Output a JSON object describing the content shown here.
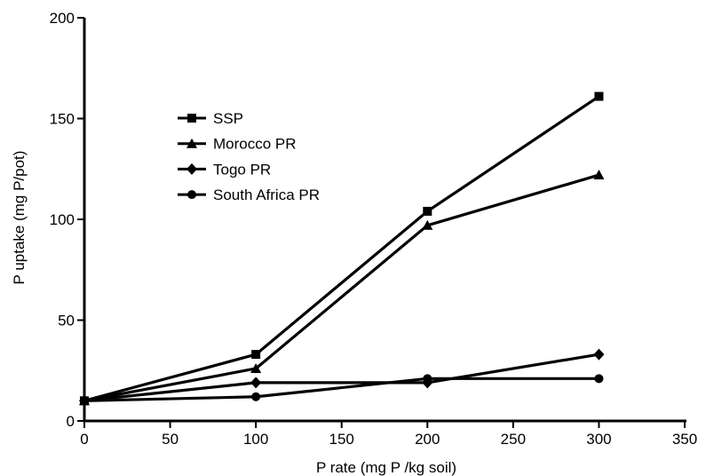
{
  "chart_data": {
    "type": "line",
    "xlabel": "P rate (mg P /kg soil)",
    "ylabel": "P uptake (mg P/pot)",
    "xlim": [
      0,
      350
    ],
    "ylim": [
      0,
      200
    ],
    "xticks": [
      0,
      50,
      100,
      150,
      200,
      250,
      300,
      350
    ],
    "yticks": [
      0,
      50,
      100,
      150,
      200
    ],
    "x": [
      0,
      100,
      200,
      300
    ],
    "grid": false,
    "legend_position": "upper-left",
    "series": [
      {
        "name": "SSP",
        "marker": "square",
        "values": [
          10,
          33,
          104,
          161
        ]
      },
      {
        "name": "Morocco PR",
        "marker": "triangle",
        "values": [
          10,
          26,
          97,
          122
        ]
      },
      {
        "name": "Togo PR",
        "marker": "diamond",
        "values": [
          10,
          19,
          19,
          33
        ]
      },
      {
        "name": "South Africa PR",
        "marker": "circle",
        "values": [
          10,
          12,
          21,
          21
        ]
      }
    ]
  }
}
